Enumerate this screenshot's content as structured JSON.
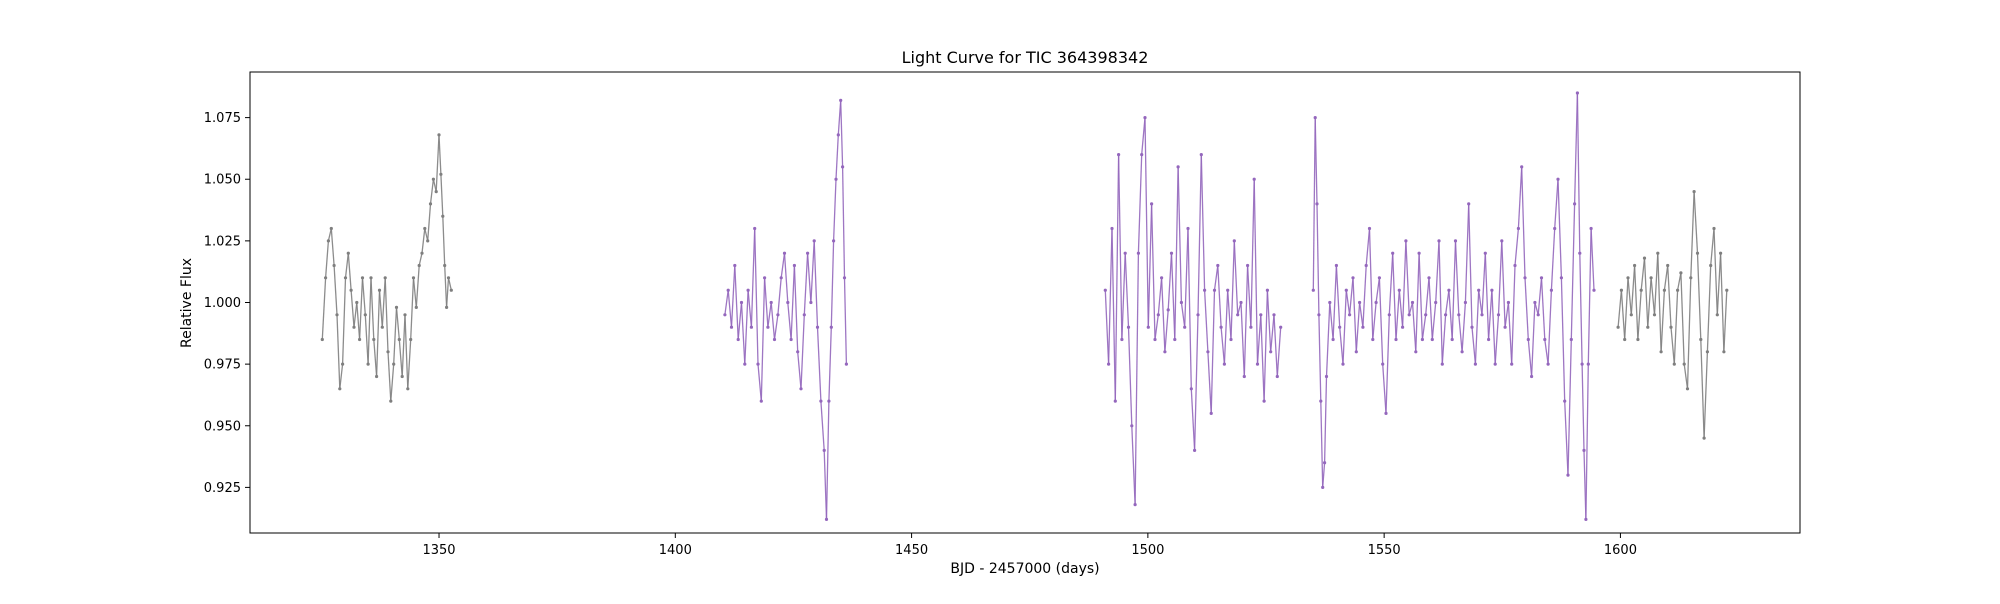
{
  "chart_data": {
    "type": "scatter",
    "title": "Light Curve for TIC 364398342",
    "xlabel": "BJD - 2457000 (days)",
    "ylabel": "Relative Flux",
    "xlim": [
      1310,
      1638
    ],
    "ylim": [
      0.9065,
      1.0935
    ],
    "xticks": [
      1350,
      1400,
      1450,
      1500,
      1550,
      1600
    ],
    "xtick_labels": [
      "1350",
      "1400",
      "1450",
      "1500",
      "1550",
      "1600"
    ],
    "yticks": [
      0.925,
      0.95,
      0.975,
      1.0,
      1.025,
      1.05,
      1.075
    ],
    "ytick_labels": [
      "0.925",
      "0.950",
      "0.975",
      "1.000",
      "1.025",
      "1.050",
      "1.075"
    ],
    "grid": false,
    "legend": "none",
    "colors": {
      "gray": "#7f7f7f",
      "purple": "#9467bd"
    },
    "series": [
      {
        "color": "#7f7f7f",
        "points": [
          [
            1325.3,
            0.985
          ],
          [
            1326.0,
            1.01
          ],
          [
            1326.6,
            1.025
          ],
          [
            1327.2,
            1.03
          ],
          [
            1327.8,
            1.015
          ],
          [
            1328.4,
            0.995
          ],
          [
            1329.0,
            0.965
          ],
          [
            1329.6,
            0.975
          ],
          [
            1330.2,
            1.01
          ],
          [
            1330.8,
            1.02
          ],
          [
            1331.4,
            1.005
          ],
          [
            1332.0,
            0.99
          ],
          [
            1332.6,
            1.0
          ],
          [
            1333.2,
            0.985
          ],
          [
            1333.8,
            1.01
          ],
          [
            1334.4,
            0.995
          ],
          [
            1335.0,
            0.975
          ],
          [
            1335.6,
            1.01
          ],
          [
            1336.2,
            0.985
          ],
          [
            1336.8,
            0.97
          ],
          [
            1337.4,
            1.005
          ],
          [
            1338.0,
            0.99
          ],
          [
            1338.6,
            1.01
          ],
          [
            1339.2,
            0.98
          ],
          [
            1339.8,
            0.96
          ],
          [
            1340.4,
            0.975
          ],
          [
            1341.0,
            0.998
          ],
          [
            1341.6,
            0.985
          ],
          [
            1342.2,
            0.97
          ],
          [
            1342.8,
            0.995
          ],
          [
            1343.4,
            0.965
          ],
          [
            1344.0,
            0.985
          ],
          [
            1344.6,
            1.01
          ],
          [
            1345.2,
            0.998
          ],
          [
            1345.8,
            1.015
          ],
          [
            1346.4,
            1.02
          ],
          [
            1347.0,
            1.03
          ],
          [
            1347.6,
            1.025
          ],
          [
            1348.2,
            1.04
          ],
          [
            1348.8,
            1.05
          ],
          [
            1349.4,
            1.045
          ],
          [
            1350.0,
            1.068
          ],
          [
            1350.4,
            1.052
          ],
          [
            1350.8,
            1.035
          ],
          [
            1351.2,
            1.015
          ],
          [
            1351.6,
            0.998
          ],
          [
            1352.0,
            1.01
          ],
          [
            1352.6,
            1.005
          ]
        ]
      },
      {
        "color": "#9467bd",
        "points": [
          [
            1410.5,
            0.995
          ],
          [
            1411.2,
            1.005
          ],
          [
            1411.9,
            0.99
          ],
          [
            1412.6,
            1.015
          ],
          [
            1413.3,
            0.985
          ],
          [
            1414.0,
            1.0
          ],
          [
            1414.7,
            0.975
          ],
          [
            1415.4,
            1.005
          ],
          [
            1416.1,
            0.99
          ],
          [
            1416.8,
            1.03
          ],
          [
            1417.5,
            0.975
          ],
          [
            1418.2,
            0.96
          ],
          [
            1418.9,
            1.01
          ],
          [
            1419.6,
            0.99
          ],
          [
            1420.3,
            1.0
          ],
          [
            1421.0,
            0.985
          ],
          [
            1421.7,
            0.995
          ],
          [
            1422.4,
            1.01
          ],
          [
            1423.1,
            1.02
          ],
          [
            1423.8,
            1.0
          ],
          [
            1424.5,
            0.985
          ],
          [
            1425.2,
            1.015
          ],
          [
            1425.9,
            0.98
          ],
          [
            1426.6,
            0.965
          ],
          [
            1427.3,
            0.995
          ],
          [
            1428.0,
            1.02
          ],
          [
            1428.7,
            1.0
          ],
          [
            1429.4,
            1.025
          ],
          [
            1430.1,
            0.99
          ],
          [
            1430.8,
            0.96
          ],
          [
            1431.5,
            0.94
          ],
          [
            1432.0,
            0.912
          ],
          [
            1432.5,
            0.96
          ],
          [
            1433.0,
            0.99
          ],
          [
            1433.5,
            1.025
          ],
          [
            1434.0,
            1.05
          ],
          [
            1434.5,
            1.068
          ],
          [
            1435.0,
            1.082
          ],
          [
            1435.4,
            1.055
          ],
          [
            1435.8,
            1.01
          ],
          [
            1436.2,
            0.975
          ]
        ]
      },
      {
        "color": "#9467bd",
        "points": [
          [
            1491.0,
            1.005
          ],
          [
            1491.7,
            0.975
          ],
          [
            1492.4,
            1.03
          ],
          [
            1493.1,
            0.96
          ],
          [
            1493.8,
            1.06
          ],
          [
            1494.5,
            0.985
          ],
          [
            1495.2,
            1.02
          ],
          [
            1495.9,
            0.99
          ],
          [
            1496.6,
            0.95
          ],
          [
            1497.3,
            0.918
          ],
          [
            1498.0,
            1.02
          ],
          [
            1498.7,
            1.06
          ],
          [
            1499.4,
            1.075
          ],
          [
            1500.1,
            0.99
          ],
          [
            1500.8,
            1.04
          ],
          [
            1501.5,
            0.985
          ],
          [
            1502.2,
            0.995
          ],
          [
            1502.9,
            1.01
          ],
          [
            1503.6,
            0.98
          ],
          [
            1504.3,
            0.997
          ],
          [
            1505.0,
            1.02
          ],
          [
            1505.7,
            0.985
          ],
          [
            1506.4,
            1.055
          ],
          [
            1507.1,
            1.0
          ],
          [
            1507.8,
            0.99
          ],
          [
            1508.5,
            1.03
          ],
          [
            1509.2,
            0.965
          ],
          [
            1509.9,
            0.94
          ],
          [
            1510.6,
            0.995
          ],
          [
            1511.3,
            1.06
          ],
          [
            1512.0,
            1.005
          ],
          [
            1512.7,
            0.98
          ],
          [
            1513.4,
            0.955
          ],
          [
            1514.1,
            1.005
          ],
          [
            1514.8,
            1.015
          ],
          [
            1515.5,
            0.99
          ],
          [
            1516.2,
            0.975
          ],
          [
            1516.9,
            1.005
          ],
          [
            1517.6,
            0.985
          ],
          [
            1518.3,
            1.025
          ],
          [
            1519.0,
            0.995
          ],
          [
            1519.7,
            1.0
          ],
          [
            1520.4,
            0.97
          ],
          [
            1521.1,
            1.015
          ],
          [
            1521.8,
            0.99
          ],
          [
            1522.5,
            1.05
          ],
          [
            1523.2,
            0.975
          ],
          [
            1523.9,
            0.995
          ],
          [
            1524.6,
            0.96
          ],
          [
            1525.3,
            1.005
          ],
          [
            1526.0,
            0.98
          ],
          [
            1526.7,
            0.995
          ],
          [
            1527.4,
            0.97
          ],
          [
            1528.1,
            0.99
          ],
          [
            1535.0,
            1.005
          ],
          [
            1535.4,
            1.075
          ],
          [
            1535.8,
            1.04
          ],
          [
            1536.2,
            0.995
          ],
          [
            1536.6,
            0.96
          ],
          [
            1537.0,
            0.925
          ],
          [
            1537.4,
            0.935
          ],
          [
            1537.8,
            0.97
          ],
          [
            1538.5,
            1.0
          ],
          [
            1539.2,
            0.985
          ],
          [
            1539.9,
            1.015
          ],
          [
            1540.6,
            0.99
          ],
          [
            1541.3,
            0.975
          ],
          [
            1542.0,
            1.005
          ],
          [
            1542.7,
            0.995
          ],
          [
            1543.4,
            1.01
          ],
          [
            1544.1,
            0.98
          ],
          [
            1544.8,
            1.0
          ],
          [
            1545.5,
            0.99
          ],
          [
            1546.2,
            1.015
          ],
          [
            1546.9,
            1.03
          ],
          [
            1547.6,
            0.985
          ],
          [
            1548.3,
            1.0
          ],
          [
            1549.0,
            1.01
          ],
          [
            1549.7,
            0.975
          ],
          [
            1550.4,
            0.955
          ],
          [
            1551.1,
            0.995
          ],
          [
            1551.8,
            1.02
          ],
          [
            1552.5,
            0.985
          ],
          [
            1553.2,
            1.005
          ],
          [
            1553.9,
            0.99
          ],
          [
            1554.6,
            1.025
          ],
          [
            1555.3,
            0.995
          ],
          [
            1556.0,
            1.0
          ],
          [
            1556.7,
            0.98
          ],
          [
            1557.4,
            1.02
          ],
          [
            1558.1,
            0.985
          ],
          [
            1558.8,
            0.995
          ],
          [
            1559.5,
            1.01
          ],
          [
            1560.2,
            0.985
          ],
          [
            1560.9,
            1.0
          ],
          [
            1561.6,
            1.025
          ],
          [
            1562.3,
            0.975
          ],
          [
            1563.0,
            0.995
          ],
          [
            1563.7,
            1.005
          ],
          [
            1564.4,
            0.985
          ],
          [
            1565.1,
            1.025
          ],
          [
            1565.8,
            0.995
          ],
          [
            1566.5,
            0.98
          ],
          [
            1567.2,
            1.0
          ],
          [
            1567.9,
            1.04
          ],
          [
            1568.6,
            0.99
          ],
          [
            1569.3,
            0.975
          ],
          [
            1570.0,
            1.005
          ],
          [
            1570.7,
            0.995
          ],
          [
            1571.4,
            1.02
          ],
          [
            1572.1,
            0.985
          ],
          [
            1572.8,
            1.005
          ],
          [
            1573.5,
            0.975
          ],
          [
            1574.2,
            0.995
          ],
          [
            1574.9,
            1.025
          ],
          [
            1575.6,
            0.99
          ],
          [
            1576.3,
            1.0
          ],
          [
            1577.0,
            0.975
          ],
          [
            1577.7,
            1.015
          ],
          [
            1578.4,
            1.03
          ],
          [
            1579.1,
            1.055
          ],
          [
            1579.8,
            1.01
          ],
          [
            1580.5,
            0.985
          ],
          [
            1581.2,
            0.97
          ],
          [
            1581.9,
            1.0
          ],
          [
            1582.6,
            0.995
          ],
          [
            1583.3,
            1.01
          ],
          [
            1584.0,
            0.985
          ],
          [
            1584.7,
            0.975
          ],
          [
            1585.4,
            1.005
          ],
          [
            1586.1,
            1.03
          ],
          [
            1586.8,
            1.05
          ],
          [
            1587.5,
            1.01
          ],
          [
            1588.2,
            0.96
          ],
          [
            1588.9,
            0.93
          ],
          [
            1589.6,
            0.985
          ],
          [
            1590.3,
            1.04
          ],
          [
            1590.9,
            1.085
          ],
          [
            1591.4,
            1.02
          ],
          [
            1591.9,
            0.975
          ],
          [
            1592.3,
            0.94
          ],
          [
            1592.7,
            0.912
          ],
          [
            1593.2,
            0.975
          ],
          [
            1593.8,
            1.03
          ],
          [
            1594.4,
            1.005
          ]
        ]
      },
      {
        "color": "#7f7f7f",
        "points": [
          [
            1599.5,
            0.99
          ],
          [
            1600.2,
            1.005
          ],
          [
            1600.9,
            0.985
          ],
          [
            1601.6,
            1.01
          ],
          [
            1602.3,
            0.995
          ],
          [
            1603.0,
            1.015
          ],
          [
            1603.7,
            0.985
          ],
          [
            1604.4,
            1.005
          ],
          [
            1605.1,
            1.018
          ],
          [
            1605.8,
            0.99
          ],
          [
            1606.5,
            1.01
          ],
          [
            1607.2,
            0.995
          ],
          [
            1607.9,
            1.02
          ],
          [
            1608.6,
            0.98
          ],
          [
            1609.3,
            1.005
          ],
          [
            1610.0,
            1.015
          ],
          [
            1610.7,
            0.99
          ],
          [
            1611.4,
            0.975
          ],
          [
            1612.1,
            1.005
          ],
          [
            1612.8,
            1.012
          ],
          [
            1613.5,
            0.975
          ],
          [
            1614.2,
            0.965
          ],
          [
            1614.9,
            1.01
          ],
          [
            1615.6,
            1.045
          ],
          [
            1616.3,
            1.02
          ],
          [
            1617.0,
            0.985
          ],
          [
            1617.7,
            0.945
          ],
          [
            1618.4,
            0.98
          ],
          [
            1619.1,
            1.015
          ],
          [
            1619.8,
            1.03
          ],
          [
            1620.5,
            0.995
          ],
          [
            1621.2,
            1.02
          ],
          [
            1621.9,
            0.98
          ],
          [
            1622.5,
            1.005
          ]
        ]
      }
    ]
  }
}
